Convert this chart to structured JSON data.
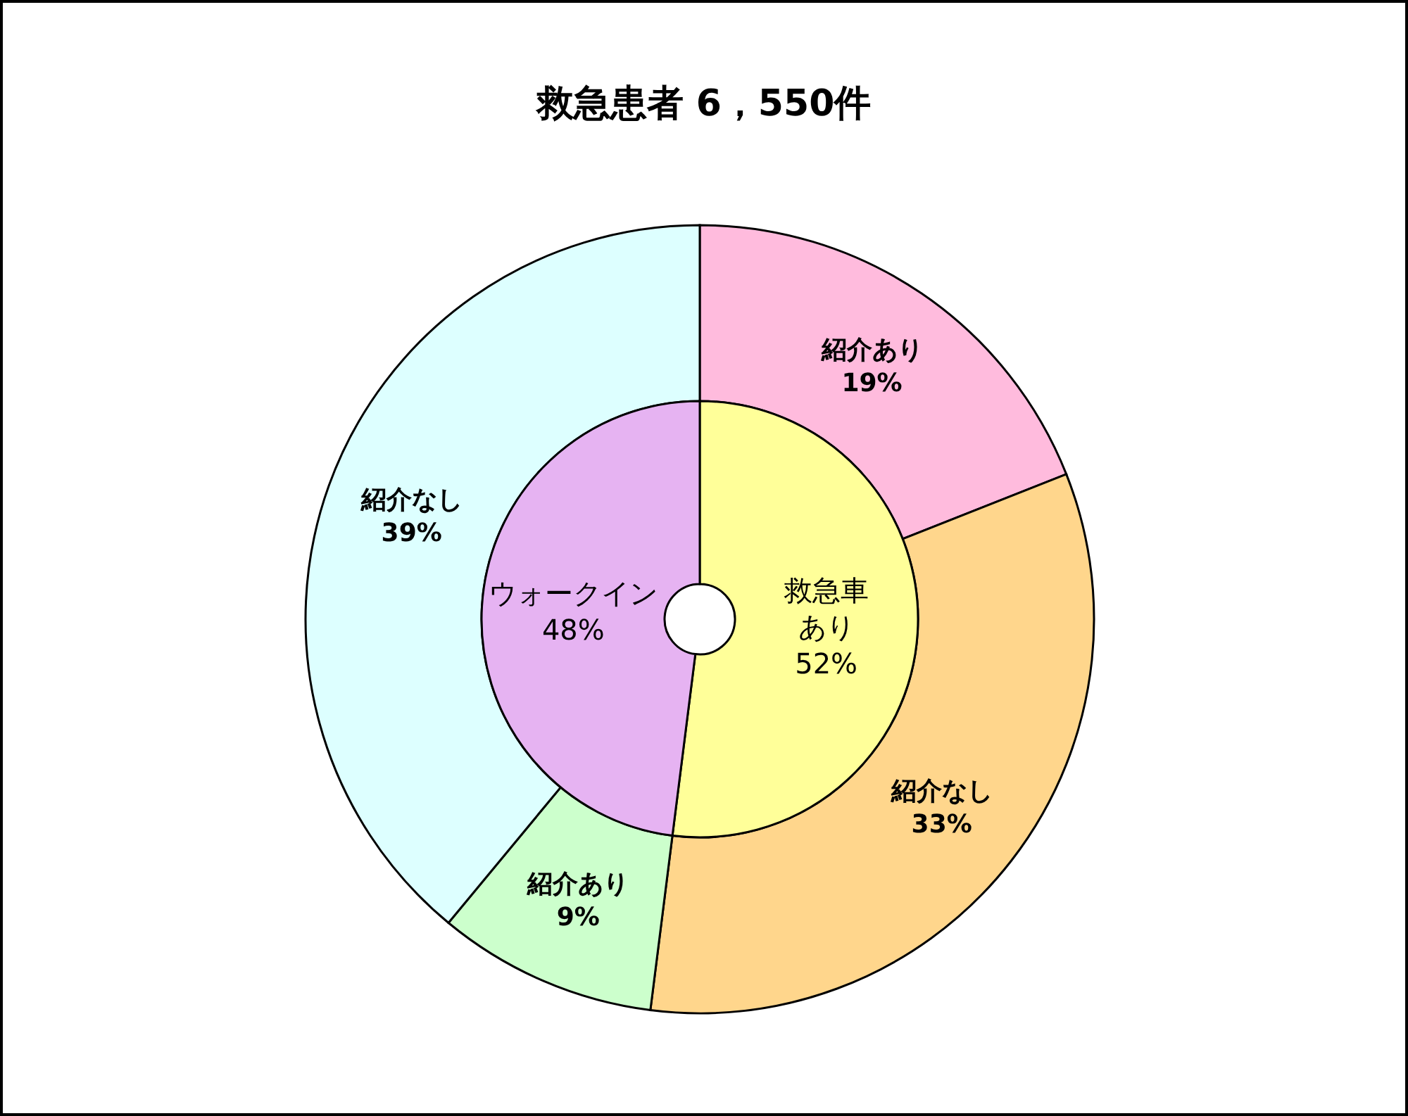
{
  "chart_data": [
    {
      "type": "donut",
      "title": "救急患者 6，550件",
      "categories": [
        "救急車あり",
        "ウォークイン"
      ],
      "values": [
        52,
        48
      ],
      "value_labels": [
        "52%",
        "48%"
      ],
      "colors": [
        "#ffff99",
        "#e6b3f2"
      ]
    },
    {
      "type": "donut",
      "categories": [
        "紹介あり",
        "紹介なし",
        "紹介あり",
        "紹介なし"
      ],
      "values": [
        19,
        33,
        9,
        39
      ],
      "value_labels": [
        "19%",
        "33%",
        "9%",
        "39%"
      ],
      "colors": [
        "#ffbbdd",
        "#ffd68c",
        "#ccffcc",
        "#ddffff"
      ]
    }
  ]
}
